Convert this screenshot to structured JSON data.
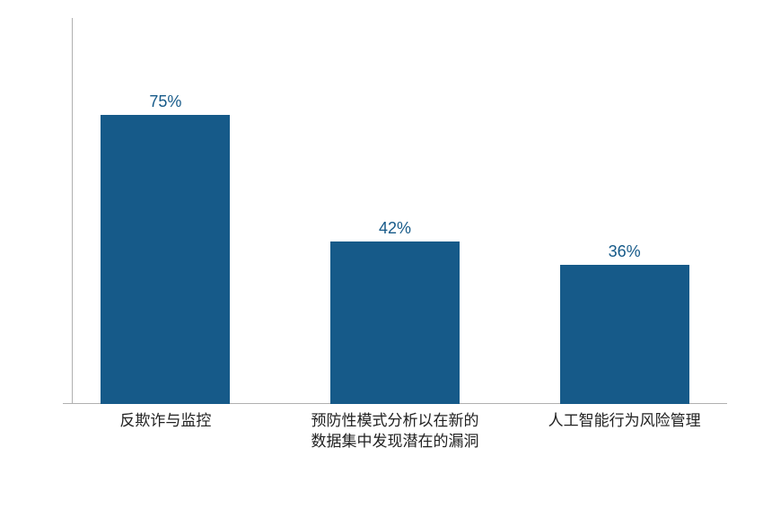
{
  "chart": {
    "type": "bar",
    "background_color": "#ffffff",
    "bar_color": "#165a89",
    "value_color": "#165a89",
    "label_color": "#222222",
    "axis_color": "#b0b0b0",
    "ylim": [
      0,
      100
    ],
    "value_fontsize": 18,
    "label_fontsize": 17,
    "bars": [
      {
        "category": "反欺诈与监控",
        "value": 75,
        "value_label": "75%",
        "left_pct": 4.5,
        "width_pct": 20
      },
      {
        "category": "预防性模式分析以在新的数据集中发现潜在的漏洞",
        "value": 42,
        "value_label": "42%",
        "left_pct": 40,
        "width_pct": 20
      },
      {
        "category": "人工智能行为风险管理",
        "value": 36,
        "value_label": "36%",
        "left_pct": 75.5,
        "width_pct": 20
      }
    ]
  }
}
